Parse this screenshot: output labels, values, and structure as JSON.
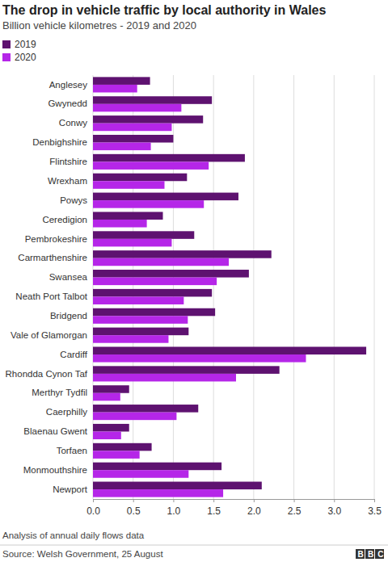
{
  "chart_data": {
    "type": "bar",
    "orientation": "horizontal",
    "title": "The drop in vehicle traffic by local authority in Wales",
    "subtitle": "Billion vehicle kilometres - 2019 and 2020",
    "footnote": "Analysis of annual daily flows data",
    "source": "Source: Welsh Government, 25 August",
    "logo": "BBC",
    "legend": "top-left",
    "grid": true,
    "categories": [
      "Anglesey",
      "Gwynedd",
      "Conwy",
      "Denbighshire",
      "Flintshire",
      "Wrexham",
      "Powys",
      "Ceredigion",
      "Pembrokeshire",
      "Carmarthenshire",
      "Swansea",
      "Neath Port Talbot",
      "Bridgend",
      "Vale of Glamorgan",
      "Cardiff",
      "Rhondda Cynon Taf",
      "Merthyr Tydfil",
      "Caerphilly",
      "Blaenau Gwent",
      "Torfaen",
      "Monmouthshire",
      "Newport"
    ],
    "series": [
      {
        "name": "2019",
        "color": "#5e1270",
        "values": [
          0.71,
          1.48,
          1.37,
          1.0,
          1.89,
          1.17,
          1.81,
          0.87,
          1.26,
          2.22,
          1.94,
          1.48,
          1.52,
          1.19,
          3.4,
          2.32,
          0.45,
          1.31,
          0.45,
          0.73,
          1.6,
          2.1
        ]
      },
      {
        "name": "2020",
        "color": "#b526e8",
        "values": [
          0.55,
          1.1,
          0.98,
          0.72,
          1.44,
          0.89,
          1.38,
          0.67,
          0.98,
          1.69,
          1.54,
          1.13,
          1.18,
          0.94,
          2.65,
          1.78,
          0.34,
          1.04,
          0.35,
          0.58,
          1.19,
          1.62
        ]
      }
    ],
    "xlim": [
      0,
      3.5
    ],
    "xticks": [
      {
        "value": 0,
        "label": "0.0"
      },
      0.5,
      {
        "value": 1,
        "label": "1.0"
      },
      1.5,
      {
        "value": 2,
        "label": "2.0"
      },
      2.5,
      {
        "value": 3,
        "label": "3.0"
      },
      3.5
    ]
  }
}
